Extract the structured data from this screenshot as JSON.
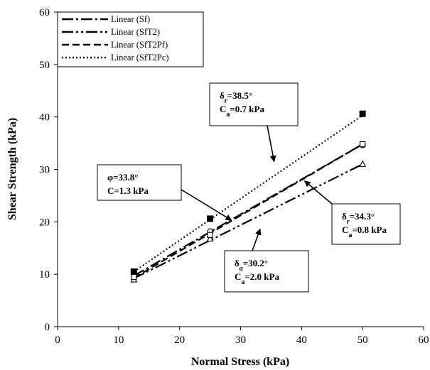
{
  "chart_data": {
    "type": "scatter",
    "xlabel": "Normal Stress (kPa)",
    "ylabel": "Shear Strength (kPa)",
    "xlim": [
      0,
      60
    ],
    "ylim": [
      0,
      60
    ],
    "xticks": [
      0,
      10,
      20,
      30,
      40,
      50,
      60
    ],
    "yticks": [
      0,
      10,
      20,
      30,
      40,
      50,
      60
    ],
    "grid": false,
    "legend_position": "top-left",
    "series": [
      {
        "name": "Linear (Sf)",
        "line_style": "long-dash-dot",
        "marker": "circle",
        "points": [
          [
            12.5,
            9.6
          ],
          [
            25,
            18.2
          ],
          [
            50,
            34.6
          ]
        ],
        "fit": {
          "x": [
            12.5,
            50
          ],
          "y": [
            9.7,
            34.8
          ]
        }
      },
      {
        "name": "Linear (SfT2)",
        "line_style": "long-dash-dot-dot",
        "marker": "triangle",
        "points": [
          [
            12.5,
            9.0
          ],
          [
            25,
            16.8
          ],
          [
            50,
            31.0
          ]
        ],
        "fit": {
          "x": [
            12.5,
            50
          ],
          "y": [
            9.2,
            31.0
          ]
        }
      },
      {
        "name": "Linear (SfT2Pf)",
        "line_style": "dash",
        "marker": "square",
        "points": [
          [
            12.5,
            9.5
          ],
          [
            25,
            17.5
          ],
          [
            50,
            34.8
          ]
        ],
        "fit": {
          "x": [
            12.5,
            50
          ],
          "y": [
            9.3,
            34.8
          ]
        }
      },
      {
        "name": "Linear (SfT2Pc)",
        "line_style": "dot",
        "marker": "filled-square",
        "points": [
          [
            12.5,
            10.5
          ],
          [
            25,
            20.6
          ],
          [
            50,
            40.6
          ]
        ],
        "fit": {
          "x": [
            12.5,
            50
          ],
          "y": [
            10.5,
            40.3
          ]
        }
      }
    ],
    "annotations": [
      {
        "name": "annotation-phi",
        "lines": [
          [
            {
              "t": "φ=33.8°"
            }
          ],
          [
            {
              "t": "C=1.3 kPa"
            }
          ]
        ],
        "target": [
          28.5,
          20.3
        ]
      },
      {
        "name": "annotation-delta-r1",
        "lines": [
          [
            {
              "t": "δ"
            },
            {
              "t": "r",
              "sub": true,
              "italic": true
            },
            {
              "t": "=38.5°"
            }
          ],
          [
            {
              "t": "C"
            },
            {
              "t": "a",
              "sub": true
            },
            {
              "t": "=0.7 kPa"
            }
          ]
        ],
        "target": [
          35.5,
          31.5
        ]
      },
      {
        "name": "annotation-delta-r2",
        "lines": [
          [
            {
              "t": "δ"
            },
            {
              "t": "r",
              "sub": true,
              "italic": true
            },
            {
              "t": "=34.3°"
            }
          ],
          [
            {
              "t": "C"
            },
            {
              "t": "a",
              "sub": true
            },
            {
              "t": "=0.8 kPa"
            }
          ]
        ],
        "target": [
          40.5,
          27.8
        ]
      },
      {
        "name": "annotation-delta-a",
        "lines": [
          [
            {
              "t": "δ"
            },
            {
              "t": "a",
              "sub": true,
              "italic": true
            },
            {
              "t": "=30.2°"
            }
          ],
          [
            {
              "t": "C"
            },
            {
              "t": "a",
              "sub": true
            },
            {
              "t": "=2.0 kPa"
            }
          ]
        ],
        "target": [
          33.2,
          18.6
        ]
      }
    ]
  }
}
